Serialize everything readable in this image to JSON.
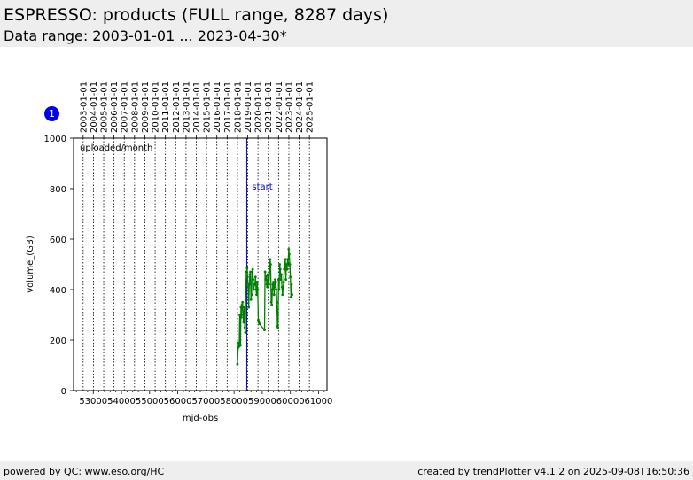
{
  "header": {
    "title": "ESPRESSO: products (FULL range, 8287 days)",
    "subtitle": "Data range: 2003-01-01 ... 2023-04-30*"
  },
  "badge": "1",
  "footer": {
    "left": "powered by QC: www.eso.org/HC",
    "right": "created by trendPlotter v4.1.2 on 2025-09-08T16:50:36"
  },
  "chart_data": {
    "type": "line",
    "xlabel": "mjd-obs",
    "ylabel": "volume_(GB)",
    "annotation": "uploaded/month",
    "xlim": [
      52300,
      61300
    ],
    "ylim": [
      0,
      1000
    ],
    "x_ticks": [
      53000,
      54000,
      55000,
      56000,
      57000,
      58000,
      59000,
      60000,
      61000
    ],
    "y_ticks": [
      0,
      200,
      400,
      600,
      800,
      1000
    ],
    "top_ticks": [
      {
        "mjd": 52640,
        "label": "2003-01-01"
      },
      {
        "mjd": 53005,
        "label": "2004-01-01"
      },
      {
        "mjd": 53371,
        "label": "2005-01-01"
      },
      {
        "mjd": 53736,
        "label": "2006-01-01"
      },
      {
        "mjd": 54101,
        "label": "2007-01-01"
      },
      {
        "mjd": 54466,
        "label": "2008-01-01"
      },
      {
        "mjd": 54832,
        "label": "2009-01-01"
      },
      {
        "mjd": 55197,
        "label": "2010-01-01"
      },
      {
        "mjd": 55562,
        "label": "2011-01-01"
      },
      {
        "mjd": 55927,
        "label": "2012-01-01"
      },
      {
        "mjd": 56293,
        "label": "2013-01-01"
      },
      {
        "mjd": 56658,
        "label": "2014-01-01"
      },
      {
        "mjd": 57023,
        "label": "2015-01-01"
      },
      {
        "mjd": 57388,
        "label": "2016-01-01"
      },
      {
        "mjd": 57754,
        "label": "2017-01-01"
      },
      {
        "mjd": 58119,
        "label": "2018-01-01"
      },
      {
        "mjd": 58484,
        "label": "2019-01-01"
      },
      {
        "mjd": 58849,
        "label": "2020-01-01"
      },
      {
        "mjd": 59215,
        "label": "2021-01-01"
      },
      {
        "mjd": 59580,
        "label": "2022-01-01"
      },
      {
        "mjd": 59945,
        "label": "2023-01-01"
      },
      {
        "mjd": 60310,
        "label": "2024-01-01"
      },
      {
        "mjd": 60676,
        "label": "2025-01-01"
      }
    ],
    "marker": {
      "label": "start",
      "mjd": 58450,
      "color": "#0000cc"
    },
    "series": [
      {
        "color": "#008000",
        "x": [
          58120,
          58145,
          58165,
          58185,
          58200,
          58215,
          58230,
          58245,
          58260,
          58280,
          58300,
          58320,
          58340,
          58360,
          58380,
          58400,
          58420,
          58440,
          58460,
          58480,
          58500,
          58520,
          58540,
          58560,
          58580,
          58600,
          58620,
          58640,
          58660,
          58680,
          58700,
          58720,
          58740,
          58760,
          58780,
          58800,
          58820,
          58840,
          58860,
          58880,
          58900,
          59080,
          59100,
          59120,
          59140,
          59160,
          59180,
          59200,
          59220,
          59240,
          59260,
          59280,
          59300,
          59320,
          59340,
          59360,
          59380,
          59400,
          59420,
          59440,
          59460,
          59480,
          59500,
          59520,
          59540,
          59560,
          59580,
          59600,
          59620,
          59640,
          59660,
          59680,
          59700,
          59720,
          59740,
          59760,
          59780,
          59800,
          59820,
          59840,
          59860,
          59880,
          59900,
          59920,
          59940,
          59960,
          59980,
          60000,
          60020,
          60040,
          60060
        ],
        "y": [
          105,
          170,
          190,
          175,
          300,
          200,
          180,
          330,
          290,
          340,
          350,
          300,
          270,
          330,
          250,
          230,
          420,
          470,
          485,
          450,
          410,
          330,
          420,
          460,
          470,
          360,
          380,
          470,
          480,
          440,
          400,
          420,
          420,
          450,
          400,
          380,
          430,
          400,
          280,
          270,
          265,
          240,
          470,
          440,
          455,
          420,
          410,
          460,
          440,
          420,
          470,
          520,
          500,
          350,
          340,
          400,
          420,
          430,
          380,
          410,
          440,
          430,
          400,
          350,
          255,
          250,
          440,
          400,
          500,
          480,
          440,
          460,
          410,
          380,
          400,
          430,
          480,
          500,
          520,
          440,
          500,
          480,
          520,
          500,
          560,
          540,
          500,
          450,
          370,
          420,
          380
        ]
      }
    ]
  }
}
